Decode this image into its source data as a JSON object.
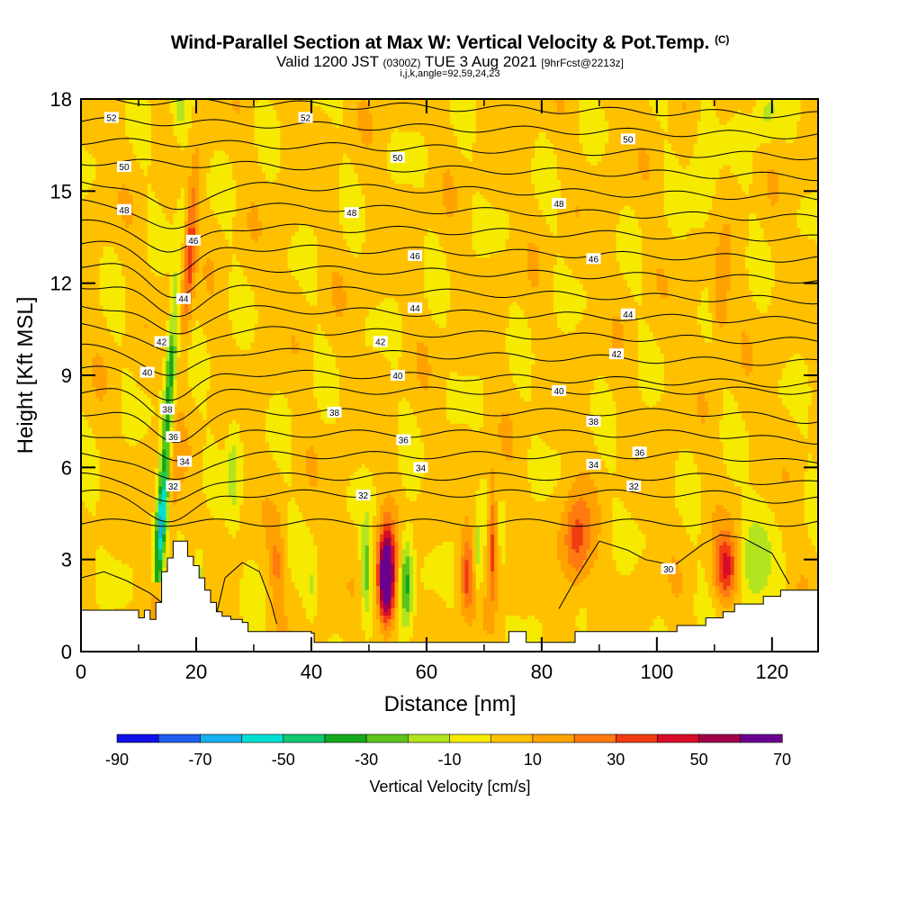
{
  "header": {
    "title": "Wind-Parallel Section at Max W: Vertical Velocity & Pot.Temp.",
    "copyright": "(C)",
    "valid_prefix": "Valid 1200 JST",
    "valid_utc": "(0300Z)",
    "valid_date": "TUE 3 Aug 2021",
    "forecast": "[9hrFcst@2213z]",
    "indices": "i,j,k,angle=92,59,24,23"
  },
  "colorbar": {
    "label": "Vertical Velocity [cm/s]",
    "tick_labels": [
      "-90",
      "-70",
      "-50",
      "-30",
      "-10",
      "10",
      "30",
      "50",
      "70"
    ],
    "colors": [
      "#1010e8",
      "#1f5ff0",
      "#14b0ee",
      "#00e0d2",
      "#10c870",
      "#14a81c",
      "#5cc41a",
      "#b2e420",
      "#f5ea00",
      "#ffc000",
      "#ffa200",
      "#ff7a10",
      "#f03c10",
      "#d80c28",
      "#a0004a",
      "#6a0090"
    ]
  },
  "chart_data": {
    "type": "heatmap",
    "title": "Wind-Parallel Section at Max W: Vertical Velocity & Pot.Temp.",
    "xlabel": "Distance [nm]",
    "ylabel": "Height [Kft MSL]",
    "xlim": [
      0,
      128
    ],
    "ylim": [
      0,
      18
    ],
    "x_ticks": [
      0,
      20,
      40,
      60,
      80,
      100,
      120
    ],
    "y_ticks": [
      0,
      3,
      6,
      9,
      12,
      15,
      18
    ],
    "x_tick_labels": [
      "0",
      "20",
      "40",
      "60",
      "80",
      "100",
      "120"
    ],
    "y_tick_labels": [
      "0",
      "3",
      "6",
      "9",
      "12",
      "15",
      "18"
    ],
    "shading_variable": "Vertical Velocity [cm/s]",
    "shading_levels": [
      -90,
      -80,
      -70,
      -60,
      -50,
      -40,
      -30,
      -20,
      -10,
      0,
      10,
      20,
      30,
      40,
      50,
      60,
      70
    ],
    "contour_variable": "Potential Temperature",
    "contour_interval": 1,
    "contour_labels": [
      {
        "x": 5.3,
        "y": 17.4,
        "text": "52"
      },
      {
        "x": 39,
        "y": 17.4,
        "text": "52"
      },
      {
        "x": 7.5,
        "y": 15.8,
        "text": "50"
      },
      {
        "x": 55,
        "y": 16.1,
        "text": "50"
      },
      {
        "x": 95,
        "y": 16.7,
        "text": "50"
      },
      {
        "x": 7.5,
        "y": 14.4,
        "text": "48"
      },
      {
        "x": 47,
        "y": 14.3,
        "text": "48"
      },
      {
        "x": 83,
        "y": 14.6,
        "text": "48"
      },
      {
        "x": 19.5,
        "y": 13.4,
        "text": "46"
      },
      {
        "x": 58,
        "y": 12.9,
        "text": "46"
      },
      {
        "x": 89,
        "y": 12.8,
        "text": "46"
      },
      {
        "x": 17.8,
        "y": 11.5,
        "text": "44"
      },
      {
        "x": 58,
        "y": 11.2,
        "text": "44"
      },
      {
        "x": 95,
        "y": 11.0,
        "text": "44"
      },
      {
        "x": 14,
        "y": 10.1,
        "text": "42"
      },
      {
        "x": 52,
        "y": 10.1,
        "text": "42"
      },
      {
        "x": 93,
        "y": 9.7,
        "text": "42"
      },
      {
        "x": 11.5,
        "y": 9.1,
        "text": "40"
      },
      {
        "x": 55,
        "y": 9.0,
        "text": "40"
      },
      {
        "x": 83,
        "y": 8.5,
        "text": "40"
      },
      {
        "x": 15,
        "y": 7.9,
        "text": "38"
      },
      {
        "x": 44,
        "y": 7.8,
        "text": "38"
      },
      {
        "x": 89,
        "y": 7.5,
        "text": "38"
      },
      {
        "x": 16,
        "y": 7.0,
        "text": "36"
      },
      {
        "x": 56,
        "y": 6.9,
        "text": "36"
      },
      {
        "x": 97,
        "y": 6.5,
        "text": "36"
      },
      {
        "x": 18,
        "y": 6.2,
        "text": "34"
      },
      {
        "x": 59,
        "y": 6.0,
        "text": "34"
      },
      {
        "x": 89,
        "y": 6.1,
        "text": "34"
      },
      {
        "x": 16,
        "y": 5.4,
        "text": "32"
      },
      {
        "x": 49,
        "y": 5.1,
        "text": "32"
      },
      {
        "x": 96,
        "y": 5.4,
        "text": "32"
      },
      {
        "x": 102,
        "y": 2.7,
        "text": "30"
      }
    ],
    "terrain_kft": [
      [
        0,
        1.35
      ],
      [
        9,
        1.35
      ],
      [
        10,
        1.1
      ],
      [
        11,
        1.35
      ],
      [
        12,
        1.05
      ],
      [
        13,
        1.6
      ],
      [
        14,
        2.6
      ],
      [
        15,
        3.05
      ],
      [
        16,
        3.6
      ],
      [
        17.5,
        3.6
      ],
      [
        18.5,
        3.1
      ],
      [
        19.5,
        2.8
      ],
      [
        20.5,
        2.4
      ],
      [
        21.5,
        2.0
      ],
      [
        22.5,
        1.6
      ],
      [
        23.5,
        1.3
      ],
      [
        24.5,
        1.15
      ],
      [
        26,
        1.05
      ],
      [
        28,
        0.95
      ],
      [
        29,
        0.65
      ],
      [
        38,
        0.65
      ],
      [
        40,
        0.6
      ],
      [
        40.5,
        0.3
      ],
      [
        74,
        0.3
      ],
      [
        74.3,
        0.65
      ],
      [
        77,
        0.65
      ],
      [
        77.3,
        0.3
      ],
      [
        85.5,
        0.3
      ],
      [
        85.8,
        0.65
      ],
      [
        103,
        0.65
      ],
      [
        103.5,
        0.85
      ],
      [
        108,
        0.85
      ],
      [
        108.5,
        1.1
      ],
      [
        111,
        1.1
      ],
      [
        111.5,
        1.3
      ],
      [
        113,
        1.3
      ],
      [
        113.5,
        1.55
      ],
      [
        118,
        1.55
      ],
      [
        118.5,
        1.8
      ],
      [
        121,
        1.8
      ],
      [
        121.5,
        2.0
      ],
      [
        128,
        2.0
      ]
    ]
  }
}
